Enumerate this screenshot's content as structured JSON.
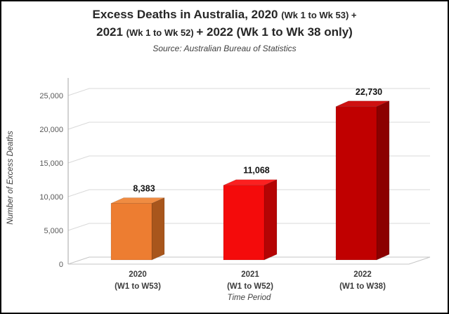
{
  "header": {
    "title_l1_big": "Excess Deaths in Australia, 2020 ",
    "title_l1_small": "(Wk 1 to Wk 53) +",
    "title_l2_big": "2021 ",
    "title_l2_small": "(Wk 1 to Wk 52) ",
    "title_l2_big2": "+ 2022 (Wk 1 to Wk 38 only)",
    "subtitle": "Source: Australian Bureau of Statistics"
  },
  "chart_data": {
    "type": "bar",
    "style": "3d-column",
    "title": "Excess Deaths in Australia, 2020 (Wk 1 to Wk 53) + 2021 (Wk 1 to Wk 52) + 2022 (Wk 1 to Wk 38 only)",
    "subtitle": "Source: Australian Bureau of Statistics",
    "categories": [
      {
        "line1": "2020",
        "line2": "(W1 to W53)"
      },
      {
        "line1": "2021",
        "line2": "(W1 to W52)"
      },
      {
        "line1": "2022",
        "line2": "(W1 to W38)"
      }
    ],
    "values": [
      8383,
      11068,
      22730
    ],
    "value_labels": [
      "8,383",
      "11,068",
      "22,730"
    ],
    "bar_colors": [
      {
        "front": "#ED7D31",
        "top": "#F08C42",
        "side": "#A8561C"
      },
      {
        "front": "#F40B0B",
        "top": "#FB2020",
        "side": "#B40404"
      },
      {
        "front": "#C00000",
        "top": "#CE1111",
        "side": "#8B0000"
      }
    ],
    "xlabel": "Time Period",
    "ylabel": "Number of Excess Deaths",
    "ylim": [
      0,
      25000
    ],
    "ytick_step": 5000,
    "ytick_labels": [
      "0",
      "5,000",
      "10,000",
      "15,000",
      "20,000",
      "25,000"
    ],
    "grid": true,
    "legend": false
  }
}
